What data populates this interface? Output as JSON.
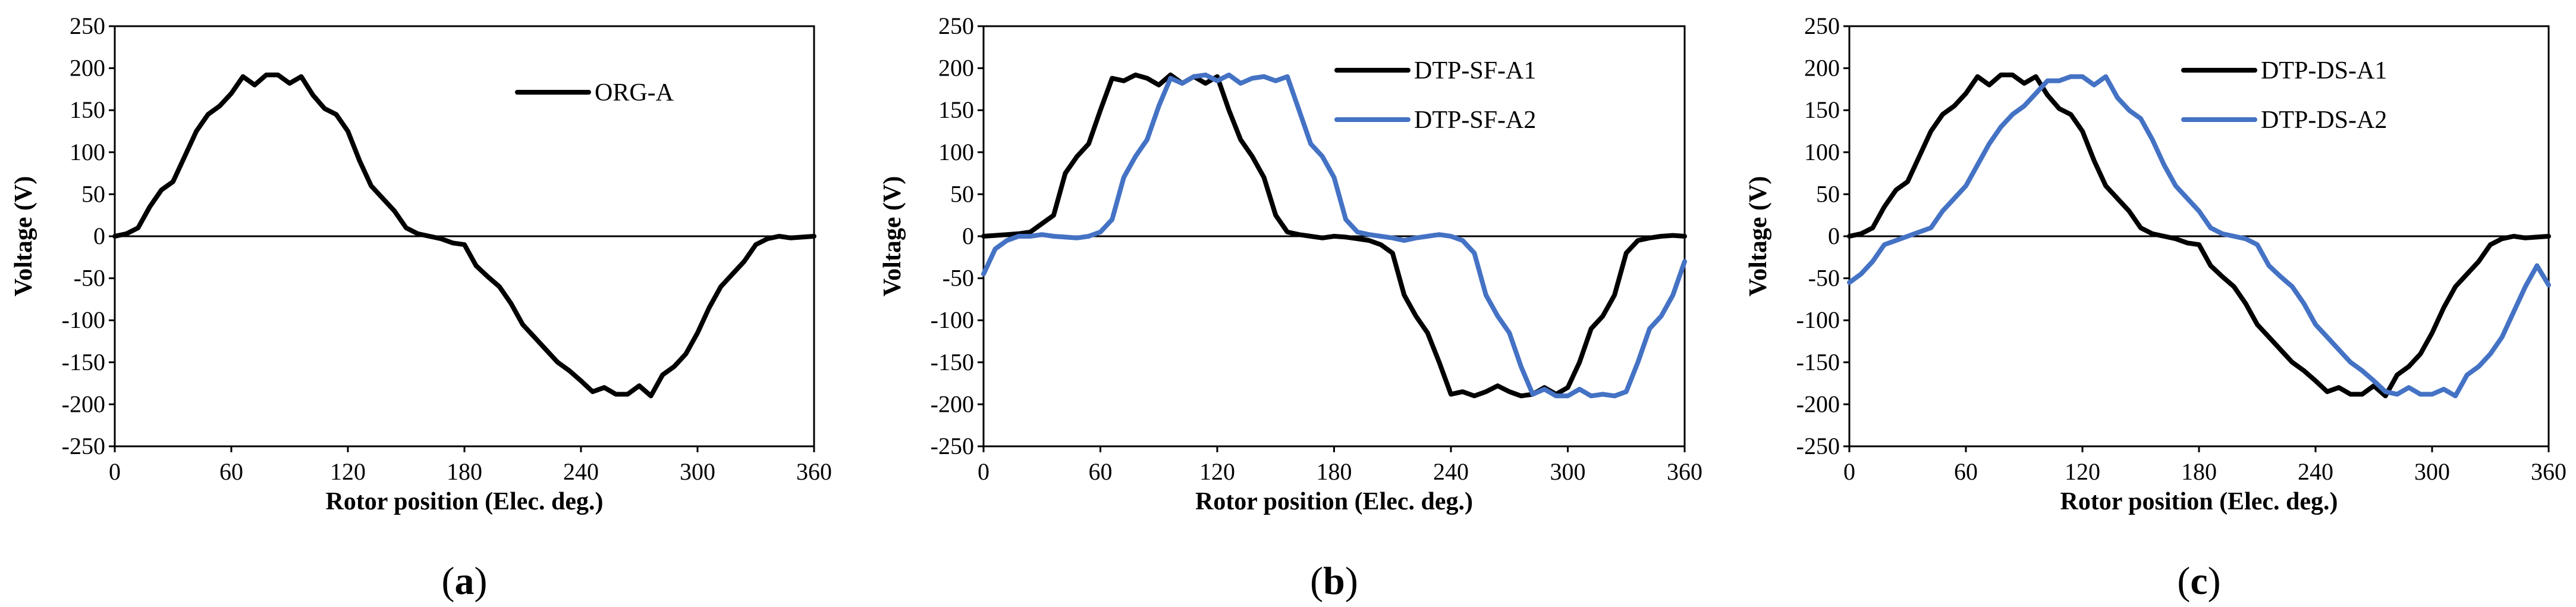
{
  "figure": {
    "xlabel": "Rotor position (Elec. deg.)",
    "ylabel": "Voltage (V)"
  },
  "chart_data": [
    {
      "type": "line",
      "panel": "a",
      "panel_label": {
        "open": "(",
        "letter": "a",
        "close": ")"
      },
      "xlabel": "Rotor position (Elec. deg.)",
      "ylabel": "Voltage (V)",
      "xlim": [
        0,
        360
      ],
      "ylim": [
        -250,
        250
      ],
      "xticks": [
        0,
        60,
        120,
        180,
        240,
        300,
        360
      ],
      "yticks": [
        250,
        200,
        150,
        100,
        50,
        0,
        -50,
        -100,
        -150,
        -200,
        -250
      ],
      "legend_position": "top-right",
      "series": [
        {
          "name": "ORG-A",
          "color": "#000000",
          "x": [
            0,
            6,
            12,
            18,
            24,
            30,
            36,
            42,
            48,
            54,
            60,
            66,
            72,
            78,
            84,
            90,
            96,
            102,
            108,
            114,
            120,
            126,
            132,
            138,
            144,
            150,
            156,
            162,
            168,
            174,
            180,
            186,
            192,
            198,
            204,
            210,
            216,
            222,
            228,
            234,
            240,
            246,
            252,
            258,
            264,
            270,
            276,
            282,
            288,
            294,
            300,
            306,
            312,
            318,
            324,
            330,
            336,
            342,
            348,
            354,
            360
          ],
          "values": [
            0,
            3,
            10,
            35,
            55,
            65,
            95,
            125,
            145,
            155,
            170,
            190,
            180,
            192,
            192,
            182,
            190,
            168,
            152,
            145,
            125,
            90,
            60,
            45,
            30,
            10,
            3,
            0,
            -3,
            -8,
            -10,
            -35,
            -48,
            -60,
            -80,
            -105,
            -120,
            -135,
            -150,
            -160,
            -172,
            -185,
            -180,
            -188,
            -188,
            -178,
            -190,
            -165,
            -155,
            -140,
            -115,
            -85,
            -60,
            -45,
            -30,
            -10,
            -3,
            0,
            -2,
            -1,
            0
          ]
        }
      ]
    },
    {
      "type": "line",
      "panel": "b",
      "panel_label": {
        "open": "(",
        "letter": "b",
        "close": ")"
      },
      "xlabel": "Rotor position (Elec. deg.)",
      "ylabel": "Voltage (V)",
      "xlim": [
        0,
        360
      ],
      "ylim": [
        -250,
        250
      ],
      "xticks": [
        0,
        60,
        120,
        180,
        240,
        300,
        360
      ],
      "yticks": [
        250,
        200,
        150,
        100,
        50,
        0,
        -50,
        -100,
        -150,
        -200,
        -250
      ],
      "legend_position": "top-right",
      "series": [
        {
          "name": "DTP-SF-A1",
          "color": "#000000",
          "x": [
            0,
            6,
            12,
            18,
            24,
            30,
            36,
            42,
            48,
            54,
            60,
            66,
            72,
            78,
            84,
            90,
            96,
            102,
            108,
            114,
            120,
            126,
            132,
            138,
            144,
            150,
            156,
            162,
            168,
            174,
            180,
            186,
            192,
            198,
            204,
            210,
            216,
            222,
            228,
            234,
            240,
            246,
            252,
            258,
            264,
            270,
            276,
            282,
            288,
            294,
            300,
            306,
            312,
            318,
            324,
            330,
            336,
            342,
            348,
            354,
            360
          ],
          "values": [
            0,
            1,
            2,
            3,
            5,
            15,
            25,
            75,
            95,
            110,
            150,
            188,
            185,
            192,
            188,
            180,
            192,
            182,
            190,
            182,
            190,
            150,
            115,
            95,
            70,
            25,
            5,
            2,
            0,
            -2,
            0,
            -1,
            -3,
            -5,
            -10,
            -20,
            -70,
            -95,
            -115,
            -150,
            -188,
            -185,
            -190,
            -185,
            -178,
            -185,
            -190,
            -188,
            -180,
            -188,
            -180,
            -150,
            -110,
            -95,
            -70,
            -20,
            -5,
            -2,
            0,
            1,
            0
          ]
        },
        {
          "name": "DTP-SF-A2",
          "color": "#4472C4",
          "x": [
            0,
            6,
            12,
            18,
            24,
            30,
            36,
            42,
            48,
            54,
            60,
            66,
            72,
            78,
            84,
            90,
            96,
            102,
            108,
            114,
            120,
            126,
            132,
            138,
            144,
            150,
            156,
            162,
            168,
            174,
            180,
            186,
            192,
            198,
            204,
            210,
            216,
            222,
            228,
            234,
            240,
            246,
            252,
            258,
            264,
            270,
            276,
            282,
            288,
            294,
            300,
            306,
            312,
            318,
            324,
            330,
            336,
            342,
            348,
            354,
            360
          ],
          "values": [
            -45,
            -15,
            -5,
            0,
            0,
            2,
            0,
            -1,
            -2,
            0,
            5,
            20,
            70,
            95,
            115,
            155,
            188,
            182,
            190,
            192,
            185,
            192,
            182,
            188,
            190,
            185,
            190,
            150,
            110,
            95,
            70,
            20,
            5,
            2,
            0,
            -2,
            -5,
            -2,
            0,
            2,
            0,
            -5,
            -20,
            -70,
            -95,
            -115,
            -155,
            -188,
            -182,
            -190,
            -190,
            -182,
            -190,
            -188,
            -190,
            -185,
            -150,
            -110,
            -95,
            -70,
            -30
          ]
        }
      ]
    },
    {
      "type": "line",
      "panel": "c",
      "panel_label": {
        "open": "(",
        "letter": "c",
        "close": ")"
      },
      "xlabel": "Rotor position (Elec. deg.)",
      "ylabel": "Voltage (V)",
      "xlim": [
        0,
        360
      ],
      "ylim": [
        -250,
        250
      ],
      "xticks": [
        0,
        60,
        120,
        180,
        240,
        300,
        360
      ],
      "yticks": [
        250,
        200,
        150,
        100,
        50,
        0,
        -50,
        -100,
        -150,
        -200,
        -250
      ],
      "legend_position": "top-right",
      "series": [
        {
          "name": "DTP-DS-A1",
          "color": "#000000",
          "x": [
            0,
            6,
            12,
            18,
            24,
            30,
            36,
            42,
            48,
            54,
            60,
            66,
            72,
            78,
            84,
            90,
            96,
            102,
            108,
            114,
            120,
            126,
            132,
            138,
            144,
            150,
            156,
            162,
            168,
            174,
            180,
            186,
            192,
            198,
            204,
            210,
            216,
            222,
            228,
            234,
            240,
            246,
            252,
            258,
            264,
            270,
            276,
            282,
            288,
            294,
            300,
            306,
            312,
            318,
            324,
            330,
            336,
            342,
            348,
            354,
            360
          ],
          "values": [
            0,
            3,
            10,
            35,
            55,
            65,
            95,
            125,
            145,
            155,
            170,
            190,
            180,
            192,
            192,
            182,
            190,
            168,
            152,
            145,
            125,
            90,
            60,
            45,
            30,
            10,
            3,
            0,
            -3,
            -8,
            -10,
            -35,
            -48,
            -60,
            -80,
            -105,
            -120,
            -135,
            -150,
            -160,
            -172,
            -185,
            -180,
            -188,
            -188,
            -178,
            -190,
            -165,
            -155,
            -140,
            -115,
            -85,
            -60,
            -45,
            -30,
            -10,
            -3,
            0,
            -2,
            -1,
            0
          ]
        },
        {
          "name": "DTP-DS-A2",
          "color": "#4472C4",
          "x": [
            0,
            6,
            12,
            18,
            24,
            30,
            36,
            42,
            48,
            54,
            60,
            66,
            72,
            78,
            84,
            90,
            96,
            102,
            108,
            114,
            120,
            126,
            132,
            138,
            144,
            150,
            156,
            162,
            168,
            174,
            180,
            186,
            192,
            198,
            204,
            210,
            216,
            222,
            228,
            234,
            240,
            246,
            252,
            258,
            264,
            270,
            276,
            282,
            288,
            294,
            300,
            306,
            312,
            318,
            324,
            330,
            336,
            342,
            348,
            354,
            360
          ],
          "values": [
            -55,
            -45,
            -30,
            -10,
            -5,
            0,
            5,
            10,
            30,
            45,
            60,
            85,
            110,
            130,
            145,
            155,
            170,
            185,
            185,
            190,
            190,
            180,
            190,
            165,
            150,
            140,
            115,
            85,
            60,
            45,
            30,
            10,
            3,
            0,
            -3,
            -10,
            -35,
            -48,
            -60,
            -80,
            -105,
            -120,
            -135,
            -150,
            -160,
            -172,
            -185,
            -188,
            -180,
            -188,
            -188,
            -182,
            -190,
            -165,
            -155,
            -140,
            -120,
            -90,
            -60,
            -35,
            -58
          ]
        }
      ]
    }
  ]
}
